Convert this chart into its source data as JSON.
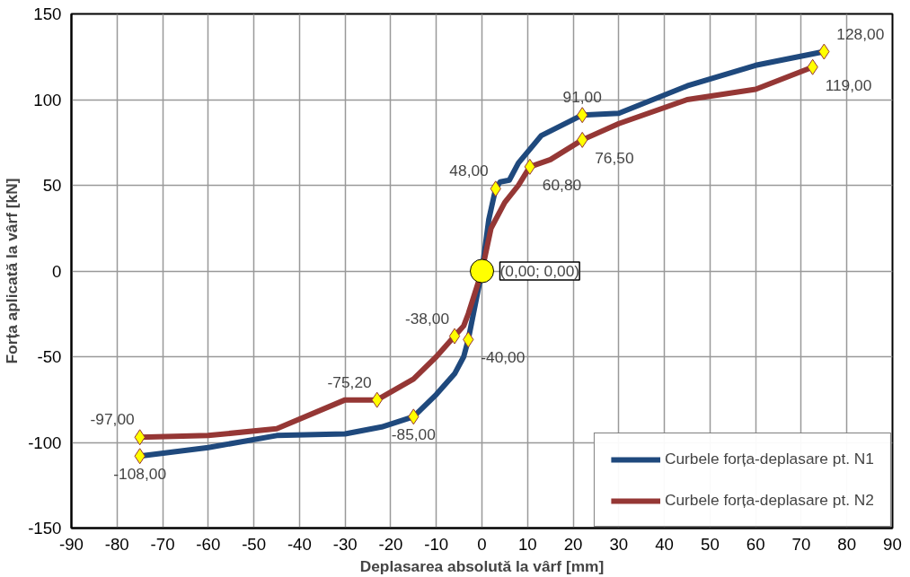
{
  "chart_data": {
    "type": "line",
    "xlabel": "Deplasarea absolută la vârf [mm]",
    "ylabel": "Forța aplicată la vârf [kN]",
    "xlim": [
      -90,
      90
    ],
    "ylim": [
      -150,
      150
    ],
    "xticks": [
      -90,
      -80,
      -70,
      -60,
      -50,
      -40,
      -30,
      -20,
      -10,
      0,
      10,
      20,
      30,
      40,
      50,
      60,
      70,
      80,
      90
    ],
    "yticks": [
      -150,
      -100,
      -50,
      0,
      50,
      100,
      150
    ],
    "grid": true,
    "legend": "bottom right",
    "line_style": "solid",
    "marker": "none",
    "series": [
      {
        "name": "Curbele forța-deplasare pt. N1",
        "color": "#1f497d",
        "x": [
          -75,
          -60,
          -45,
          -30,
          -22,
          -15,
          -10,
          -6,
          -4,
          -3,
          -1.5,
          0,
          1.5,
          3,
          4,
          6,
          8,
          13,
          22,
          30,
          45,
          60,
          75
        ],
        "values": [
          -108,
          -103,
          -96,
          -95,
          -91,
          -85,
          -72,
          -60,
          -50,
          -40,
          -20,
          0,
          30,
          48,
          52,
          53,
          63,
          79,
          91,
          92,
          108,
          120,
          128
        ]
      },
      {
        "name": "Curbele forța-deplasare pt. N2",
        "color": "#953735",
        "x": [
          -75,
          -60,
          -45,
          -30,
          -23,
          -15,
          -10,
          -6,
          -4,
          -3,
          0,
          2,
          5,
          8,
          10.5,
          15,
          22,
          30,
          45,
          60,
          72.5
        ],
        "values": [
          -97,
          -96,
          -92,
          -75.2,
          -75.2,
          -63,
          -50,
          -38,
          -32,
          -25,
          0,
          25,
          40,
          50,
          60.8,
          65,
          76.5,
          86,
          100,
          106,
          119
        ]
      },
      {
        "type": "scatter",
        "marker": "diamond",
        "color": "#ffff00",
        "x": [
          -75,
          -15,
          -3,
          3,
          22,
          75
        ],
        "values": [
          -108,
          -85,
          -40,
          48,
          91,
          128
        ],
        "value_labels": [
          "-108,00",
          "-85,00",
          "-40,00",
          "48,00",
          "91,00",
          "128,00"
        ]
      },
      {
        "type": "scatter",
        "marker": "diamond",
        "color": "#ffff00",
        "x": [
          -75,
          -23,
          -6,
          10.5,
          22,
          72.5
        ],
        "values": [
          -97,
          -75.2,
          -38,
          60.8,
          76.5,
          119
        ],
        "value_labels": [
          "-97,00",
          "-75,20",
          "-38,00",
          "60,80",
          "76,50",
          "119,00"
        ]
      },
      {
        "type": "scatter",
        "marker": "circle",
        "color": "#ffff00",
        "x": [
          0
        ],
        "values": [
          0
        ],
        "value_labels": [
          "(0,00; 0,00)"
        ]
      }
    ]
  }
}
